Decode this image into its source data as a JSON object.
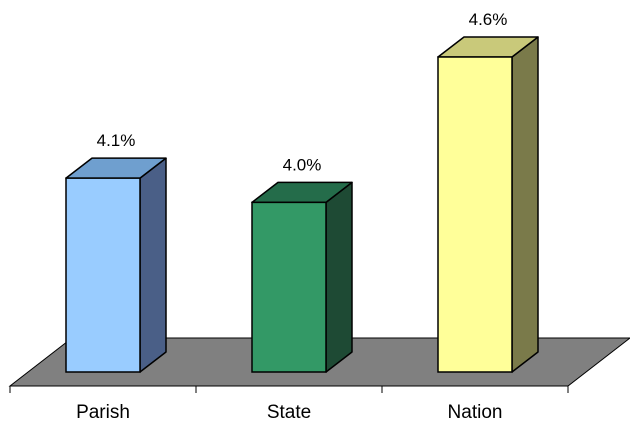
{
  "chart_data": {
    "type": "bar",
    "style": "3d",
    "categories": [
      "Parish",
      "State",
      "Nation"
    ],
    "values": [
      4.1,
      4.0,
      4.6
    ],
    "value_labels": [
      "4.1%",
      "4.0%",
      "4.6%"
    ],
    "title": "",
    "xlabel": "",
    "ylabel": "",
    "grid": false,
    "legend": "none",
    "colors": {
      "bar_front": [
        "#99ccff",
        "#339966",
        "#ffff99"
      ],
      "bar_top": [
        "#6f9fcf",
        "#246c4a",
        "#c9c97a"
      ],
      "bar_side": [
        "#4a5f87",
        "#1e4a34",
        "#7a7a4a"
      ],
      "floor": "#808080",
      "edge": "#000000"
    }
  }
}
